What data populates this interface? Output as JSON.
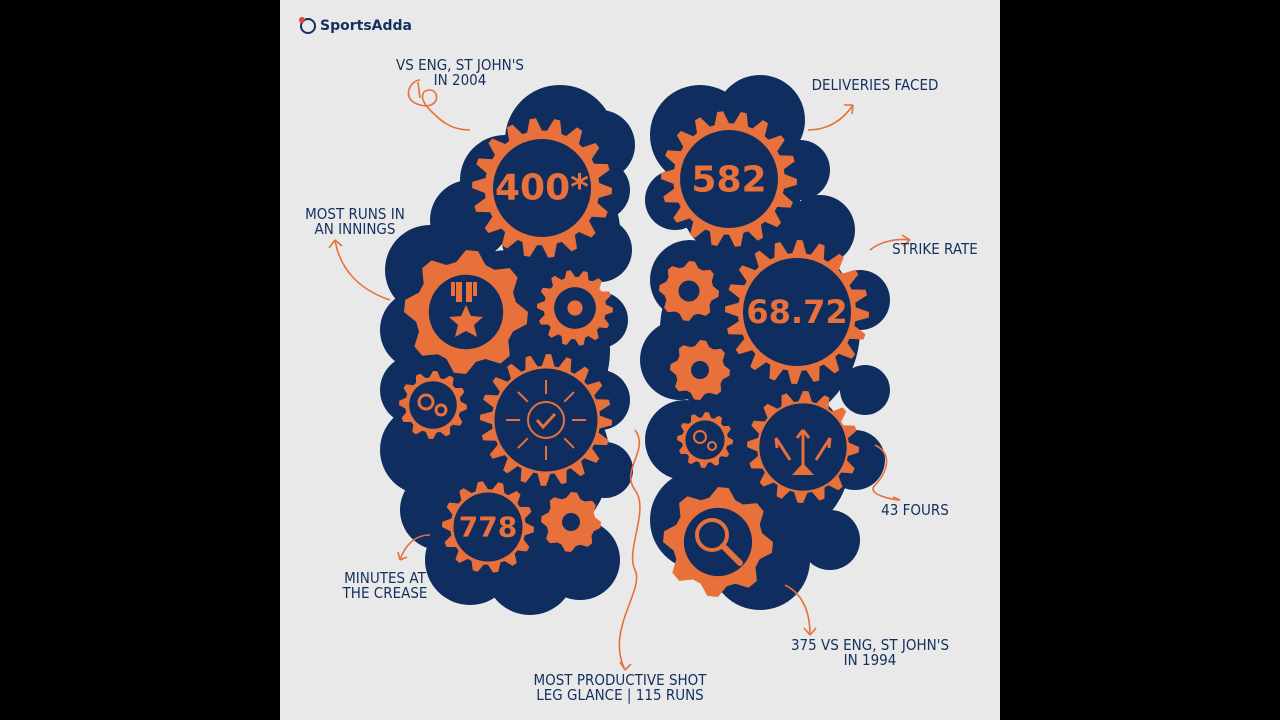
{
  "brand": {
    "name": "SportsAdda"
  },
  "colors": {
    "navy": "#0f2d5e",
    "orange": "#e8703a",
    "background": "#e9e9e9"
  },
  "stats": {
    "highest_score": "400*",
    "deliveries": "582",
    "strike_rate": "68.72",
    "minutes": "778"
  },
  "labels": {
    "vs_eng_2004": [
      "VS ENG, ST JOHN'S",
      "IN 2004"
    ],
    "most_runs": [
      "MOST RUNS IN",
      "AN INNINGS"
    ],
    "minutes_at_crease": [
      "MINUTES AT",
      "THE CREASE"
    ],
    "most_productive_shot": [
      "MOST PRODUCTIVE SHOT",
      "LEG GLANCE | 115 RUNS"
    ],
    "deliveries_faced": "DELIVERIES FACED",
    "strike_rate": "STRIKE RATE",
    "fours": "43 FOURS",
    "vs_eng_1994": [
      "375 VS ENG, ST JOHN'S",
      "IN 1994"
    ]
  },
  "icons": [
    "medal-icon",
    "target-check-icon",
    "growth-arrows-icon",
    "magnifier-icon",
    "cog-icon"
  ]
}
